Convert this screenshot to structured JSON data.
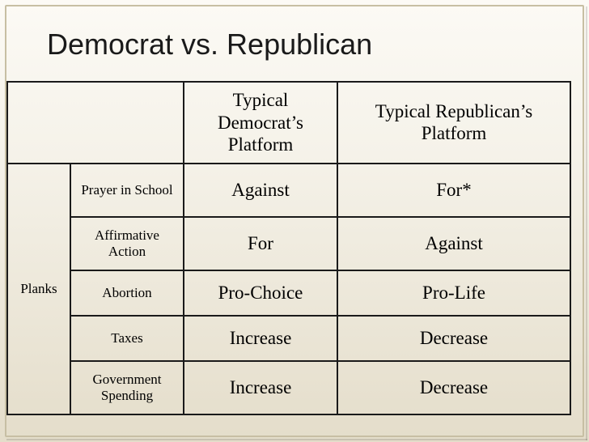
{
  "title": "Democrat vs. Republican",
  "side_label": "Planks",
  "headers": {
    "democrat": "Typical Democrat’s Platform",
    "republican": "Typical Republican’s Platform"
  },
  "rows": [
    {
      "plank": "Prayer in School",
      "dem": "Against",
      "rep": "For*"
    },
    {
      "plank": "Affirmative Action",
      "dem": "For",
      "rep": "Against"
    },
    {
      "plank": "Abortion",
      "dem": "Pro-Choice",
      "rep": "Pro-Life"
    },
    {
      "plank": "Taxes",
      "dem": "Increase",
      "rep": "Decrease"
    },
    {
      "plank": "Government Spending",
      "dem": "Increase",
      "rep": "Decrease"
    }
  ],
  "style": {
    "title_font": "Verdana",
    "title_fontsize": 36,
    "body_font": "Georgia",
    "header_fontsize": 23,
    "cell_fontsize": 23,
    "plank_fontsize": 17,
    "border_color": "#1a1a1a",
    "border_width": 2,
    "bg_gradient_top": "#fcfaf5",
    "bg_gradient_mid": "#f5f2e9",
    "bg_gradient_bottom": "#e4ddca",
    "frame_color": "#c7bfa3"
  }
}
